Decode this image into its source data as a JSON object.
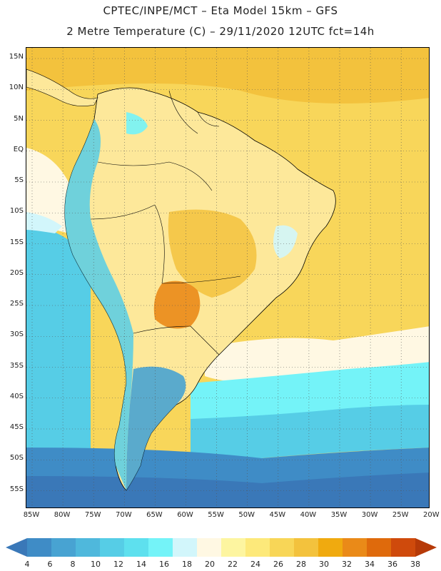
{
  "title": {
    "line1": "CPTEC/INPE/MCT –  Eta Model 15km – GFS",
    "line2": "2 Metre Temperature (C) – 29/11/2020 12UTC fct=14h"
  },
  "map": {
    "region": "South America",
    "lon_range": [
      -85,
      -20
    ],
    "lat_range": [
      -58,
      16
    ],
    "lat_ticks": [
      "15N",
      "10N",
      "5N",
      "EQ",
      "5S",
      "10S",
      "15S",
      "20S",
      "25S",
      "30S",
      "35S",
      "40S",
      "45S",
      "50S",
      "55S"
    ],
    "lon_ticks": [
      "85W",
      "80W",
      "75W",
      "70W",
      "65W",
      "60W",
      "55W",
      "50W",
      "45W",
      "40W",
      "35W",
      "30W",
      "25W",
      "20W"
    ],
    "gridlines": true,
    "gridline_style": "dotted",
    "ocean_base_color": "#f7d35a",
    "land_base_color": "#fde89a"
  },
  "colorbar": {
    "labels": [
      "4",
      "6",
      "8",
      "10",
      "12",
      "14",
      "16",
      "18",
      "20",
      "22",
      "24",
      "26",
      "28",
      "30",
      "32",
      "34",
      "36",
      "38"
    ],
    "colors": [
      "#3a78b8",
      "#3f8cc6",
      "#48a3d2",
      "#4fb8dc",
      "#56cde6",
      "#5ee0ee",
      "#74f3f8",
      "#d2f6fb",
      "#fff8e3",
      "#fdf5a0",
      "#fde97a",
      "#f8d657",
      "#f3c23d",
      "#f0aa0f",
      "#ea8a18",
      "#df6a0c",
      "#cf4a0c",
      "#b63a08"
    ],
    "units": "C"
  }
}
